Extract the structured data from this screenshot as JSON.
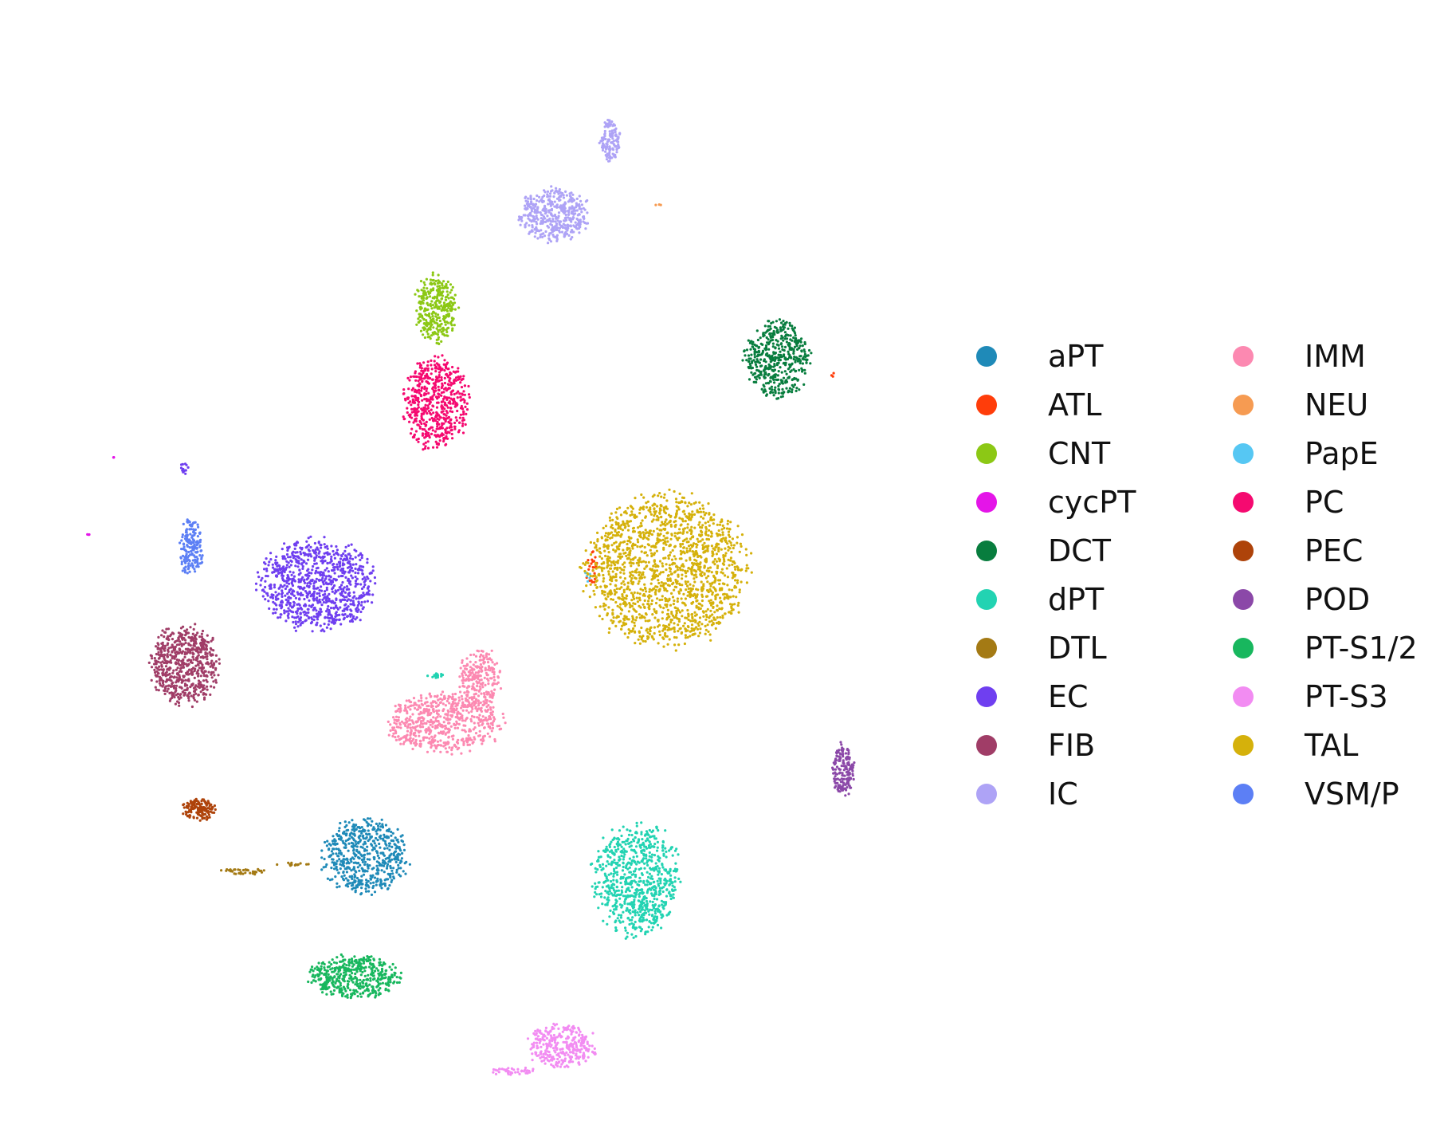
{
  "chart_data": {
    "type": "scatter",
    "title": "",
    "xlabel": "",
    "ylabel": "",
    "axes_visible": false,
    "grid": false,
    "legend_position": "right",
    "legend_columns": 2,
    "series": [
      {
        "name": "aPT",
        "color": "#1f8ab8",
        "clusters": [
          {
            "cx": 4.4,
            "cy": 3.35,
            "rx": 0.55,
            "ry": 0.5,
            "n": 560
          }
        ]
      },
      {
        "name": "ATL",
        "color": "#ff3d0a",
        "clusters": [
          {
            "cx": 7.45,
            "cy": 7.35,
            "rx": 0.08,
            "ry": 0.25,
            "n": 25
          },
          {
            "cx": 10.7,
            "cy": 10.0,
            "rx": 0.03,
            "ry": 0.03,
            "n": 3
          }
        ]
      },
      {
        "name": "CNT",
        "color": "#8cc815",
        "clusters": [
          {
            "cx": 5.35,
            "cy": 10.9,
            "rx": 0.28,
            "ry": 0.45,
            "n": 320
          }
        ]
      },
      {
        "name": "cycPT",
        "color": "#e415e8",
        "clusters": [
          {
            "cx": 0.65,
            "cy": 7.8,
            "rx": 0.02,
            "ry": 0.02,
            "n": 3
          },
          {
            "cx": 1.0,
            "cy": 8.85,
            "rx": 0.02,
            "ry": 0.02,
            "n": 3
          }
        ]
      },
      {
        "name": "DCT",
        "color": "#087d3e",
        "clusters": [
          {
            "cx": 9.95,
            "cy": 10.2,
            "rx": 0.42,
            "ry": 0.5,
            "n": 480
          }
        ]
      },
      {
        "name": "dPT",
        "color": "#22d3b2",
        "clusters": [
          {
            "cx": 8.05,
            "cy": 3.05,
            "rx": 0.55,
            "ry": 0.75,
            "n": 760
          },
          {
            "cx": 5.35,
            "cy": 5.85,
            "rx": 0.12,
            "ry": 0.03,
            "n": 15
          }
        ]
      },
      {
        "name": "DTL",
        "color": "#a47a14",
        "clusters": [
          {
            "cx": 2.75,
            "cy": 3.15,
            "rx": 0.3,
            "ry": 0.04,
            "n": 40
          },
          {
            "cx": 3.4,
            "cy": 3.25,
            "rx": 0.25,
            "ry": 0.02,
            "n": 14
          }
        ]
      },
      {
        "name": "EC",
        "color": "#6f3ff0",
        "clusters": [
          {
            "cx": 3.75,
            "cy": 7.1,
            "rx": 0.75,
            "ry": 0.6,
            "n": 900
          },
          {
            "cx": 1.95,
            "cy": 8.7,
            "rx": 0.06,
            "ry": 0.08,
            "n": 14
          }
        ]
      },
      {
        "name": "FIB",
        "color": "#a03d67",
        "clusters": [
          {
            "cx": 1.95,
            "cy": 6.0,
            "rx": 0.45,
            "ry": 0.52,
            "n": 620
          }
        ]
      },
      {
        "name": "IC",
        "color": "#aea3f6",
        "clusters": [
          {
            "cx": 6.95,
            "cy": 12.2,
            "rx": 0.45,
            "ry": 0.35,
            "n": 430
          },
          {
            "cx": 7.7,
            "cy": 13.2,
            "rx": 0.13,
            "ry": 0.3,
            "n": 140
          }
        ]
      },
      {
        "name": "IMM",
        "color": "#fc89b1",
        "clusters": [
          {
            "cx": 5.45,
            "cy": 5.2,
            "rx": 0.75,
            "ry": 0.4,
            "n": 620
          },
          {
            "cx": 5.95,
            "cy": 5.8,
            "rx": 0.28,
            "ry": 0.4,
            "n": 240
          }
        ]
      },
      {
        "name": "NEU",
        "color": "#f69b52",
        "clusters": [
          {
            "cx": 8.35,
            "cy": 12.35,
            "rx": 0.04,
            "ry": 0.04,
            "n": 3
          }
        ]
      },
      {
        "name": "PapE",
        "color": "#56c7f3",
        "clusters": [
          {
            "cx": 7.4,
            "cy": 7.2,
            "rx": 0.05,
            "ry": 0.08,
            "n": 6
          }
        ]
      },
      {
        "name": "PC",
        "color": "#f50a70",
        "clusters": [
          {
            "cx": 5.35,
            "cy": 9.6,
            "rx": 0.42,
            "ry": 0.6,
            "n": 560
          }
        ]
      },
      {
        "name": "PEC",
        "color": "#ae430a",
        "clusters": [
          {
            "cx": 2.15,
            "cy": 4.0,
            "rx": 0.22,
            "ry": 0.14,
            "n": 140
          }
        ]
      },
      {
        "name": "POD",
        "color": "#8b48a8",
        "clusters": [
          {
            "cx": 10.85,
            "cy": 4.55,
            "rx": 0.14,
            "ry": 0.35,
            "n": 170
          }
        ]
      },
      {
        "name": "PT-S1/2",
        "color": "#18b75e",
        "clusters": [
          {
            "cx": 4.25,
            "cy": 1.7,
            "rx": 0.6,
            "ry": 0.28,
            "n": 460
          }
        ]
      },
      {
        "name": "PT-S3",
        "color": "#f28cf2",
        "clusters": [
          {
            "cx": 7.05,
            "cy": 0.75,
            "rx": 0.45,
            "ry": 0.28,
            "n": 320
          },
          {
            "cx": 6.4,
            "cy": 0.4,
            "rx": 0.3,
            "ry": 0.05,
            "n": 40
          }
        ]
      },
      {
        "name": "TAL",
        "color": "#d5b10b",
        "clusters": [
          {
            "cx": 8.45,
            "cy": 7.3,
            "rx": 1.05,
            "ry": 1.0,
            "n": 1600
          }
        ]
      },
      {
        "name": "VSM/P",
        "color": "#5c7ff5",
        "clusters": [
          {
            "cx": 2.05,
            "cy": 7.6,
            "rx": 0.15,
            "ry": 0.4,
            "n": 170
          }
        ]
      }
    ],
    "xlim": [
      0,
      11.3
    ],
    "ylim": [
      0,
      14.5
    ]
  }
}
